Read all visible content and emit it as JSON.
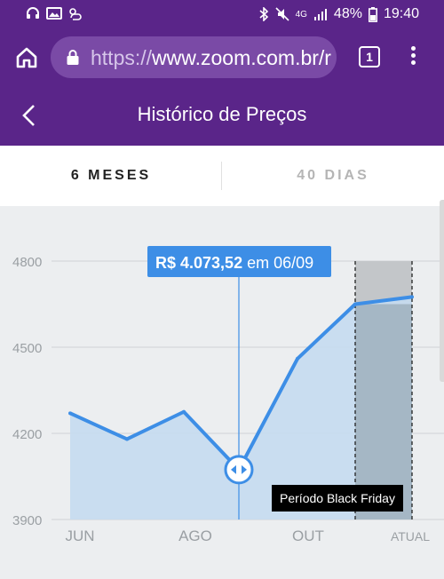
{
  "status_bar": {
    "battery": "48%",
    "time": "19:40",
    "network": "4G",
    "icons": [
      "headset-icon",
      "image-icon",
      "cloud-icon",
      "bluetooth-icon",
      "mute-icon",
      "signal-icon",
      "battery-icon"
    ]
  },
  "browser": {
    "url_protocol": "https://",
    "url_host": "www.zoom.com.br/r",
    "tab_count": "1"
  },
  "header": {
    "title": "Histórico de Preços"
  },
  "tabs": [
    {
      "label": "6 MESES",
      "active": true
    },
    {
      "label": "40 DIAS",
      "active": false
    }
  ],
  "colors": {
    "brand_purple": "#5a2589",
    "line_blue": "#3d8ee6",
    "area_fill": "#c5daf0",
    "tooltip_bg": "#3d8ee6",
    "black_friday_band": "#9aabb8"
  },
  "tooltip": {
    "price": "R$ 4.073,52",
    "date_text": "em 06/09"
  },
  "black_friday_label": "Período Black Friday",
  "chart_data": {
    "type": "area",
    "x": [
      "01/06",
      "01/07",
      "01/08",
      "06/09",
      "01/10",
      "01/11",
      "atual"
    ],
    "y": [
      4270,
      4180,
      4275,
      4073.52,
      4460,
      4650,
      4675
    ],
    "x_ticks": [
      "JUN",
      "AGO",
      "OUT",
      "ATUAL"
    ],
    "y_ticks": [
      3900,
      4200,
      4500,
      4800
    ],
    "ylim": [
      3900,
      4800
    ],
    "grid": true,
    "highlighted_range": {
      "label": "Período Black Friday",
      "from": "01/11",
      "to": "atual"
    }
  }
}
